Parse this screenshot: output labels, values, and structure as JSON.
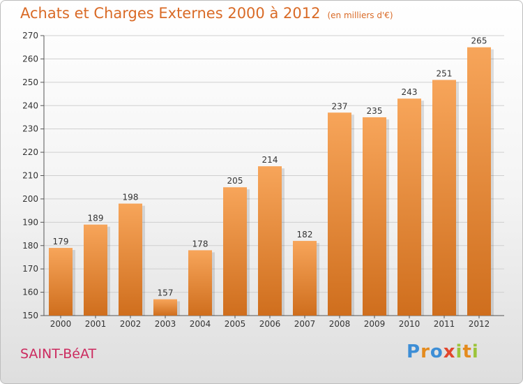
{
  "title": "Achats et Charges Externes 2000 à 2012",
  "subtitle": "(en milliers d'€)",
  "city": "SAINT-BéAT",
  "logo": {
    "letters": [
      "P",
      "r",
      "o",
      "x",
      "i",
      "t",
      "i"
    ],
    "colors": [
      "#3d8ed6",
      "#e48b1e",
      "#3d8ed6",
      "#e2462d",
      "#9cc43a",
      "#e48b1e",
      "#9cc43a"
    ]
  },
  "chart_data": {
    "type": "bar",
    "categories": [
      "2000",
      "2001",
      "2002",
      "2003",
      "2004",
      "2005",
      "2006",
      "2007",
      "2008",
      "2009",
      "2010",
      "2011",
      "2012"
    ],
    "values": [
      179,
      189,
      198,
      157,
      178,
      205,
      214,
      182,
      237,
      235,
      243,
      251,
      265
    ],
    "ylim": [
      150,
      270
    ],
    "yticks": [
      150,
      160,
      170,
      180,
      190,
      200,
      210,
      220,
      230,
      240,
      250,
      260,
      270
    ],
    "grid": true,
    "bar_color_top": "#f7a55a",
    "bar_color_bottom": "#cf6e1d"
  }
}
